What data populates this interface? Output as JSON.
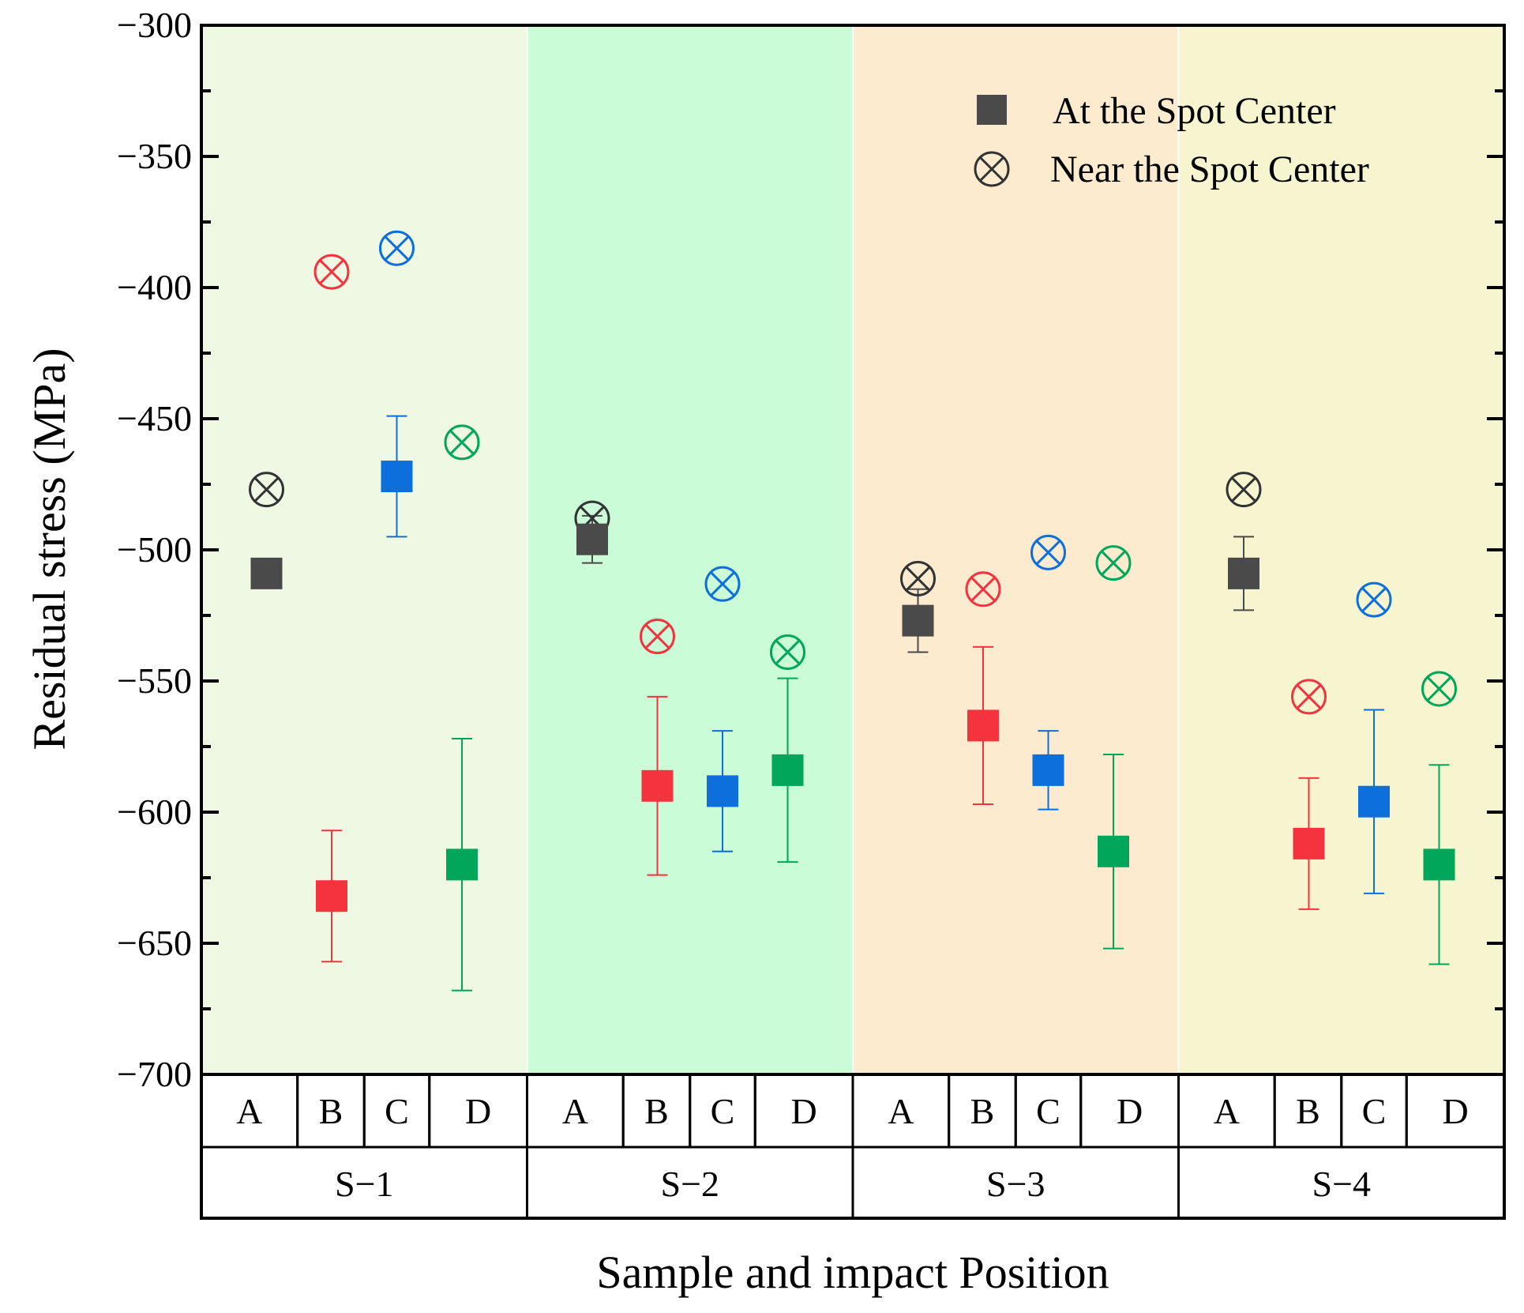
{
  "chart_data": {
    "type": "scatter",
    "title": "",
    "xlabel": "Sample and impact Position",
    "ylabel": "Residual stress (MPa)",
    "ylim": [
      -700,
      -300
    ],
    "yticks": [
      -300,
      -350,
      -400,
      -450,
      -500,
      -550,
      -600,
      -650,
      -700
    ],
    "ytick_labels": [
      "−300",
      "−350",
      "−400",
      "−450",
      "−500",
      "−550",
      "−600",
      "−650",
      "−700"
    ],
    "grid": false,
    "legend": {
      "position": "top-right",
      "entries": [
        "At the Spot Center",
        "Near the Spot Center"
      ]
    },
    "positions": [
      "A",
      "B",
      "C",
      "D"
    ],
    "position_colors": [
      "#4a4a4a",
      "#f5333f",
      "#0d6fdc",
      "#00a65a"
    ],
    "groups": [
      {
        "name": "S−1",
        "background": "#eef8e3",
        "at_center": [
          {
            "position": "A",
            "value": -509,
            "error": null
          },
          {
            "position": "B",
            "value": -632,
            "error": 25
          },
          {
            "position": "C",
            "value": -472,
            "error": 23
          },
          {
            "position": "D",
            "value": -620,
            "error": 48
          }
        ],
        "near_center": [
          {
            "position": "A",
            "value": -477
          },
          {
            "position": "B",
            "value": -394
          },
          {
            "position": "C",
            "value": -385
          },
          {
            "position": "D",
            "value": -459
          }
        ]
      },
      {
        "name": "S−2",
        "background": "#cafcd7",
        "at_center": [
          {
            "position": "A",
            "value": -496,
            "error": 9
          },
          {
            "position": "B",
            "value": -590,
            "error": 34
          },
          {
            "position": "C",
            "value": -592,
            "error": 23
          },
          {
            "position": "D",
            "value": -584,
            "error": 35
          }
        ],
        "near_center": [
          {
            "position": "A",
            "value": -488
          },
          {
            "position": "B",
            "value": -533
          },
          {
            "position": "C",
            "value": -513
          },
          {
            "position": "D",
            "value": -539
          }
        ]
      },
      {
        "name": "S−3",
        "background": "#fcebcf",
        "at_center": [
          {
            "position": "A",
            "value": -527,
            "error": 12
          },
          {
            "position": "B",
            "value": -567,
            "error": 30
          },
          {
            "position": "C",
            "value": -584,
            "error": 15
          },
          {
            "position": "D",
            "value": -615,
            "error": 37
          }
        ],
        "near_center": [
          {
            "position": "A",
            "value": -511
          },
          {
            "position": "B",
            "value": -515
          },
          {
            "position": "C",
            "value": -501
          },
          {
            "position": "D",
            "value": -505
          }
        ]
      },
      {
        "name": "S−4",
        "background": "#f7f5d0",
        "at_center": [
          {
            "position": "A",
            "value": -509,
            "error": 14
          },
          {
            "position": "B",
            "value": -612,
            "error": 25
          },
          {
            "position": "C",
            "value": -596,
            "error": 35
          },
          {
            "position": "D",
            "value": -620,
            "error": 38
          }
        ],
        "near_center": [
          {
            "position": "A",
            "value": -477
          },
          {
            "position": "B",
            "value": -556
          },
          {
            "position": "C",
            "value": -519
          },
          {
            "position": "D",
            "value": -553
          }
        ]
      }
    ]
  }
}
